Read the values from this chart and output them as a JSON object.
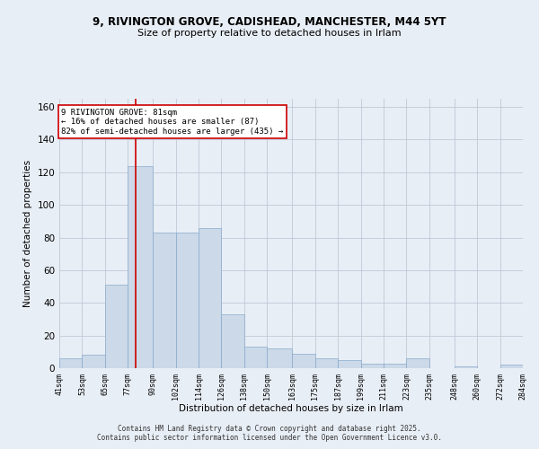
{
  "title_line1": "9, RIVINGTON GROVE, CADISHEAD, MANCHESTER, M44 5YT",
  "title_line2": "Size of property relative to detached houses in Irlam",
  "xlabel": "Distribution of detached houses by size in Irlam",
  "ylabel": "Number of detached properties",
  "bar_color": "#ccd9e8",
  "bar_edge_color": "#88aacc",
  "vline_color": "#cc0000",
  "vline_x": 81,
  "annotation_text": "9 RIVINGTON GROVE: 81sqm\n← 16% of detached houses are smaller (87)\n82% of semi-detached houses are larger (435) →",
  "annotation_box_color": "#ffffff",
  "annotation_box_edge": "#cc0000",
  "grid_color": "#c0c8d8",
  "bg_color": "#e8eef5",
  "footer_text": "Contains HM Land Registry data © Crown copyright and database right 2025.\nContains public sector information licensed under the Open Government Licence v3.0.",
  "bin_edges": [
    41,
    53,
    65,
    77,
    90,
    102,
    114,
    126,
    138,
    150,
    163,
    175,
    187,
    199,
    211,
    223,
    235,
    248,
    260,
    272,
    284
  ],
  "bin_labels": [
    "41sqm",
    "53sqm",
    "65sqm",
    "77sqm",
    "90sqm",
    "102sqm",
    "114sqm",
    "126sqm",
    "138sqm",
    "150sqm",
    "163sqm",
    "175sqm",
    "187sqm",
    "199sqm",
    "211sqm",
    "223sqm",
    "235sqm",
    "248sqm",
    "260sqm",
    "272sqm",
    "284sqm"
  ],
  "counts": [
    6,
    8,
    51,
    124,
    83,
    83,
    86,
    33,
    13,
    12,
    9,
    6,
    5,
    3,
    3,
    6,
    0,
    1,
    0,
    2
  ],
  "ylim": [
    0,
    165
  ],
  "yticks": [
    0,
    20,
    40,
    60,
    80,
    100,
    120,
    140,
    160
  ]
}
